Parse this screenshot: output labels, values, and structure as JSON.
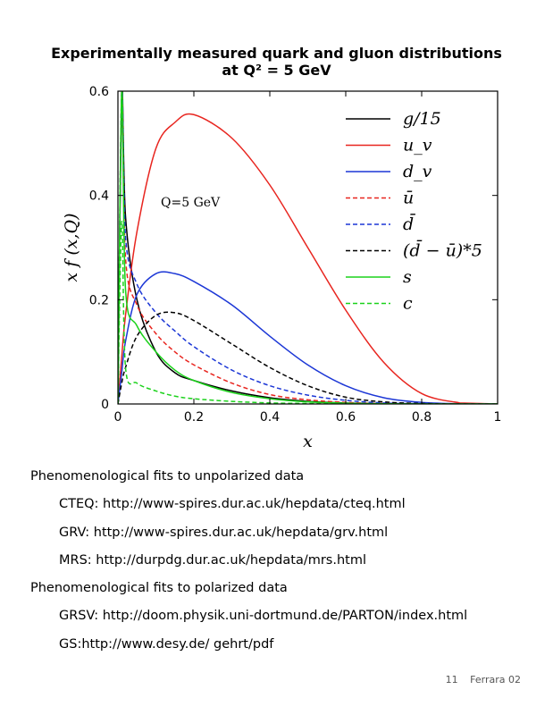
{
  "title_line1": "Experimentally measured quark and gluon distributions",
  "title_line2": "at Q² = 5 GeV",
  "chart_data": {
    "type": "line",
    "title": "Experimentally measured quark and gluon distributions at Q² = 5 GeV",
    "xlabel": "x",
    "ylabel": "x f (x,Q)",
    "xlim": [
      0,
      1
    ],
    "ylim": [
      0,
      0.6
    ],
    "xticks": [
      "0",
      "0.2",
      "0.4",
      "0.6",
      "0.8",
      "1"
    ],
    "yticks": [
      "0",
      "0.2",
      "0.4",
      "0.6"
    ],
    "annotation": "Q=5 GeV",
    "legend_position": "top-right",
    "x": [
      0.01,
      0.02,
      0.05,
      0.1,
      0.15,
      0.2,
      0.3,
      0.4,
      0.5,
      0.6,
      0.7,
      0.8,
      0.9
    ],
    "series": [
      {
        "name": "g/15",
        "color": "#000000",
        "dash": false,
        "values": [
          0.6,
          0.36,
          0.2,
          0.1,
          0.06,
          0.045,
          0.025,
          0.012,
          0.005,
          0.002,
          0.0007,
          0.0002,
          0.0
        ]
      },
      {
        "name": "u_v",
        "color": "#e8251f",
        "dash": false,
        "values": [
          0.09,
          0.17,
          0.33,
          0.49,
          0.54,
          0.555,
          0.51,
          0.42,
          0.3,
          0.18,
          0.08,
          0.02,
          0.002
        ]
      },
      {
        "name": "d_v",
        "color": "#1c37d6",
        "dash": false,
        "values": [
          0.06,
          0.12,
          0.21,
          0.25,
          0.25,
          0.235,
          0.19,
          0.13,
          0.075,
          0.035,
          0.012,
          0.003,
          0.0003
        ]
      },
      {
        "name": "ū",
        "color": "#e8251f",
        "dash": true,
        "values": [
          0.6,
          0.28,
          0.19,
          0.135,
          0.1,
          0.075,
          0.04,
          0.018,
          0.008,
          0.003,
          0.001,
          0.0003,
          0.0
        ]
      },
      {
        "name": "d̄",
        "color": "#1c37d6",
        "dash": true,
        "values": [
          0.6,
          0.32,
          0.23,
          0.175,
          0.14,
          0.11,
          0.065,
          0.035,
          0.017,
          0.007,
          0.002,
          0.0005,
          0.0
        ]
      },
      {
        "name": "(d̄ − ū)*5",
        "color": "#000000",
        "dash": true,
        "values": [
          0.04,
          0.07,
          0.13,
          0.17,
          0.175,
          0.16,
          0.115,
          0.07,
          0.035,
          0.013,
          0.004,
          0.001,
          0.0
        ]
      },
      {
        "name": "s",
        "color": "#1bd21b",
        "dash": false,
        "values": [
          0.6,
          0.22,
          0.15,
          0.1,
          0.065,
          0.045,
          0.022,
          0.01,
          0.004,
          0.0015,
          0.0005,
          0.0001,
          0.0
        ]
      },
      {
        "name": "c",
        "color": "#1bd21b",
        "dash": true,
        "values": [
          0.35,
          0.07,
          0.04,
          0.025,
          0.015,
          0.01,
          0.005,
          0.002,
          0.001,
          0.0003,
          0.0001,
          0.0,
          0.0
        ]
      }
    ]
  },
  "links": {
    "unpolarized_header": "Phenomenological fits to unpolarized data",
    "cteq": "CTEQ: http://www-spires.dur.ac.uk/hepdata/cteq.html",
    "grv": "GRV: http://www-spires.dur.ac.uk/hepdata/grv.html",
    "mrs": "MRS: http://durpdg.dur.ac.uk/hepdata/mrs.html",
    "polarized_header": "Phenomenological fits to polarized data",
    "grsv": "GRSV: http://doom.physik.uni-dortmund.de/PARTON/index.html",
    "gs": "GS:http://www.desy.de/ gehrt/pdf"
  },
  "footer": {
    "page": "11",
    "label": "Ferrara 02"
  }
}
